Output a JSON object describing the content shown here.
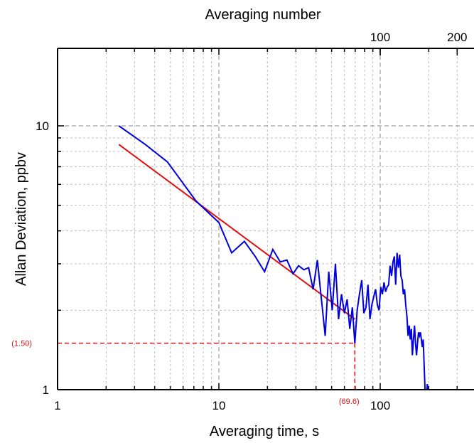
{
  "chart_data": {
    "type": "line",
    "xlabel": "Averaging time, s",
    "ylabel": "Allan Deviation, ppbv",
    "top_xlabel": "Averaging number",
    "x_scale": "log",
    "y_scale": "log",
    "xlim": [
      1,
      600
    ],
    "ylim": [
      1,
      25
    ],
    "grid": true,
    "x_ticks": [
      1,
      10,
      100
    ],
    "y_ticks": [
      1,
      10
    ],
    "top_ticks": [
      {
        "label": "100",
        "at_time": 100
      },
      {
        "label": "200",
        "at_time": 300
      }
    ],
    "colors": {
      "measured": "#0000dd",
      "fit": "#e01010",
      "annotation": "#e01010",
      "grid_major": "#888888",
      "grid_minor": "#c0c0c0"
    },
    "series": [
      {
        "role": "measured",
        "x": [
          2.4,
          3.5,
          4.8,
          7.2,
          10,
          12,
          14.4,
          16.8,
          19.2,
          21.6,
          24,
          26.4,
          28.8,
          31.2,
          33.6,
          36,
          38.4,
          40.8,
          43.2,
          45.6,
          48,
          50.4,
          52.8,
          55.2,
          57.6,
          60,
          62.4,
          64.8,
          67.2,
          69.6,
          72,
          74.4,
          76.8,
          79.2,
          81.6,
          84,
          86.4,
          88.8,
          91.2,
          93.6,
          96,
          98.4,
          100.8,
          103.2,
          105.6,
          108,
          110.4,
          112.8,
          115.2,
          117.6,
          120,
          122.4,
          124.8,
          127.2,
          129.6,
          132,
          134.4,
          136.8,
          139.2,
          141.6,
          144,
          146.4,
          148.8,
          151.2,
          153.6,
          156,
          158.4,
          160.8,
          163.2,
          165.6,
          168,
          170.4,
          172.8,
          175.2,
          177.6,
          180,
          182.4,
          184.8,
          187.2,
          189.6,
          192,
          196,
          200
        ],
        "y": [
          10.0,
          8.5,
          7.3,
          5.2,
          4.3,
          3.3,
          3.65,
          3.2,
          2.8,
          3.4,
          3.05,
          3.1,
          2.75,
          2.95,
          2.85,
          2.9,
          2.4,
          3.1,
          2.2,
          1.6,
          2.8,
          2.0,
          3.0,
          1.85,
          2.3,
          1.95,
          2.2,
          1.7,
          2.05,
          1.5,
          2.0,
          2.3,
          2.6,
          1.95,
          2.05,
          2.5,
          1.85,
          2.1,
          2.25,
          2.4,
          2.1,
          2.0,
          2.45,
          2.3,
          2.55,
          2.35,
          2.45,
          2.5,
          2.95,
          2.7,
          3.05,
          3.2,
          2.5,
          3.3,
          2.9,
          3.25,
          2.7,
          2.6,
          2.3,
          2.4,
          2.1,
          1.9,
          1.6,
          1.75,
          1.55,
          1.7,
          1.35,
          1.55,
          1.75,
          1.5,
          1.35,
          1.5,
          1.65,
          1.6,
          1.65,
          1.55,
          1.45,
          1.55,
          1.25,
          1.0,
          0.85,
          1.05,
          0.9
        ]
      },
      {
        "role": "fit",
        "x": [
          2.4,
          69.6
        ],
        "y": [
          8.5,
          1.85
        ]
      }
    ],
    "annotations": [
      {
        "label": "(1.50)",
        "x": 69.6,
        "y": 1.5,
        "axis": "y"
      },
      {
        "label": "(69.6)",
        "x": 69.6,
        "y": 1.5,
        "axis": "x"
      }
    ]
  }
}
